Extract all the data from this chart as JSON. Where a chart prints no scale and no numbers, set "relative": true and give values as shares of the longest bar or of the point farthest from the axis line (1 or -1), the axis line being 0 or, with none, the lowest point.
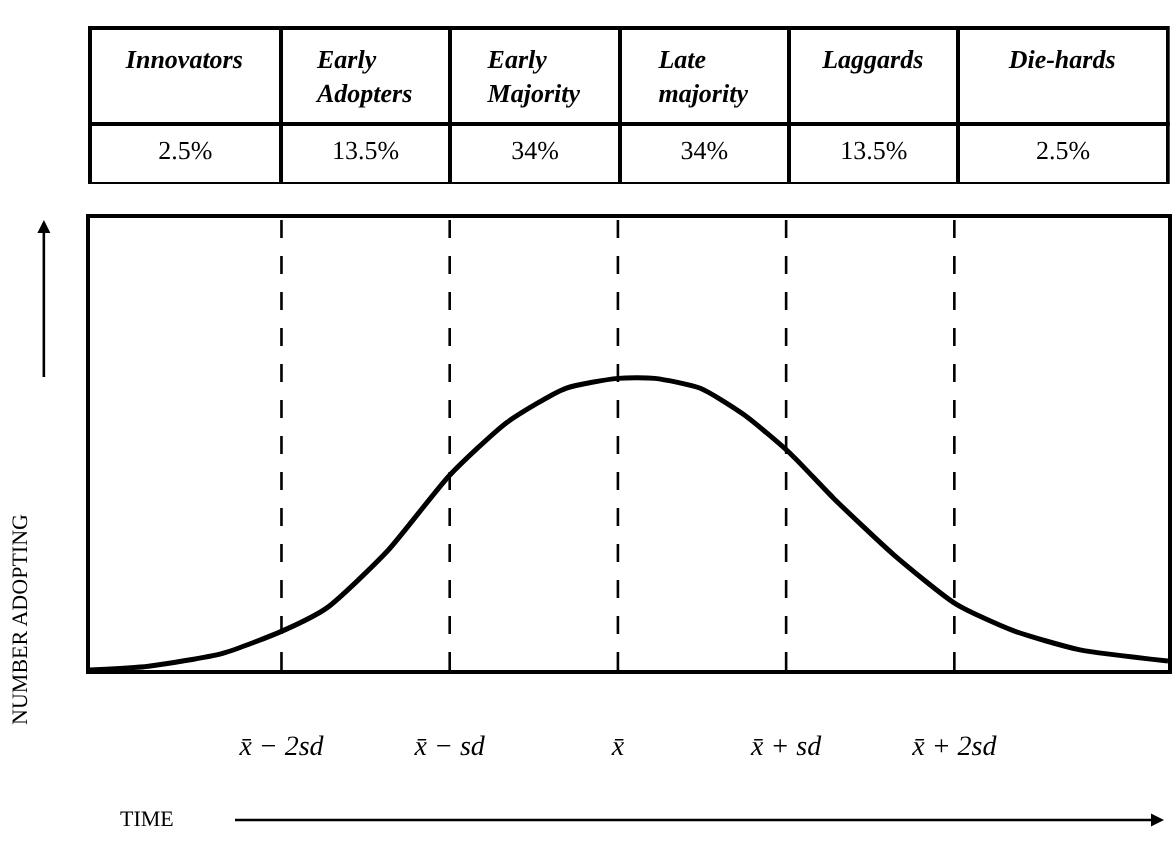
{
  "chart_data": [
    {
      "type": "other",
      "categories": [
        "Innovators",
        "Early Adopters",
        "Early Majority",
        "Late majority",
        "Laggards",
        "Die-hards"
      ],
      "value_labels": [
        "2.5%",
        "13.5%",
        "34%",
        "34%",
        "13.5%",
        "2.5%"
      ]
    },
    {
      "type": "line",
      "relative": true,
      "xlabel": "TIME",
      "ylabel": "NUMBER ADOPTING",
      "marker": "none",
      "line_style": "solid",
      "xlim": [
        -3.14,
        3.27
      ],
      "xticks": [
        {
          "value": -2,
          "label": "x̄ − 2sd"
        },
        {
          "value": -1,
          "label": "x̄ − sd"
        },
        {
          "value": 0,
          "label": "x̄"
        },
        {
          "value": 1,
          "label": "x̄ + sd"
        },
        {
          "value": 2,
          "label": "x̄ + 2sd"
        }
      ],
      "x": [
        -3.14,
        -2.79,
        -2.35,
        -1.99,
        -1.73,
        -1.37,
        -1.0,
        -0.66,
        -0.31,
        0,
        0.22,
        0.49,
        0.75,
        1.02,
        1.28,
        1.64,
        2.01,
        2.35,
        2.74,
        3.27
      ],
      "series": [
        {
          "color": "#000000",
          "values": [
            0,
            0.013,
            0.057,
            0.135,
            0.213,
            0.408,
            0.668,
            0.849,
            0.966,
            1,
            1,
            0.966,
            0.875,
            0.745,
            0.59,
            0.395,
            0.226,
            0.135,
            0.07,
            0.031
          ]
        }
      ],
      "ref_lines": [
        {
          "axis": "x",
          "value": -2,
          "color": "#000000",
          "line_style": "dashed"
        },
        {
          "axis": "x",
          "value": -1,
          "color": "#000000",
          "line_style": "dashed"
        },
        {
          "axis": "x",
          "value": 0,
          "color": "#000000",
          "line_style": "dashed"
        },
        {
          "axis": "x",
          "value": 1,
          "color": "#000000",
          "line_style": "dashed"
        },
        {
          "axis": "x",
          "value": 2,
          "color": "#000000",
          "line_style": "dashed"
        }
      ]
    }
  ]
}
